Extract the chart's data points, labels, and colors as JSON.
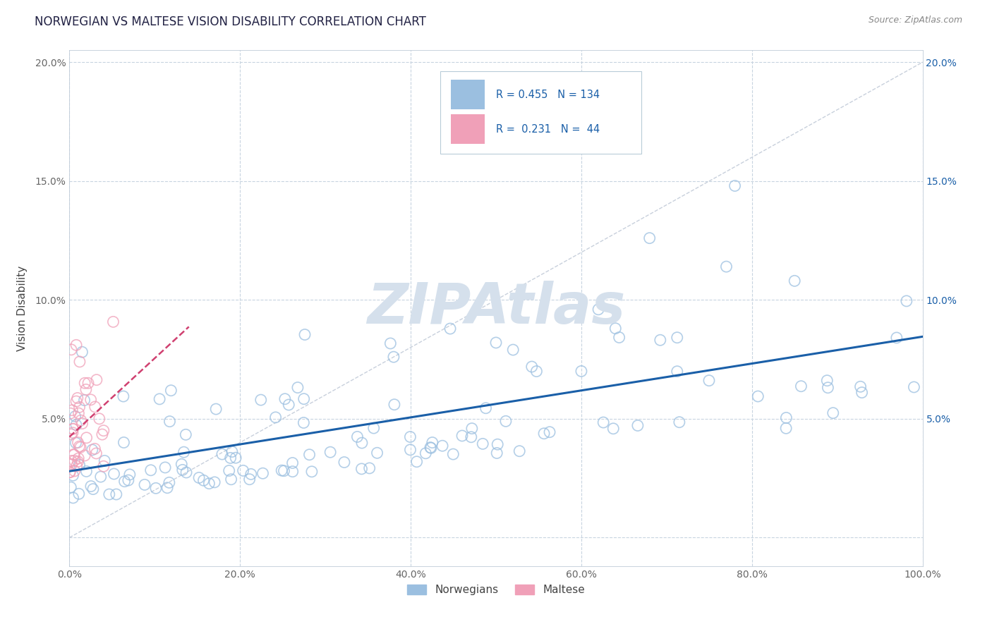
{
  "title": "NORWEGIAN VS MALTESE VISION DISABILITY CORRELATION CHART",
  "source": "Source: ZipAtlas.com",
  "ylabel": "Vision Disability",
  "xlim": [
    0,
    1
  ],
  "ylim": [
    -0.012,
    0.205
  ],
  "xticks": [
    0.0,
    0.2,
    0.4,
    0.6,
    0.8,
    1.0
  ],
  "xticklabels": [
    "0.0%",
    "20.0%",
    "40.0%",
    "60.0%",
    "80.0%",
    "100.0%"
  ],
  "yticks": [
    0.0,
    0.05,
    0.1,
    0.15,
    0.2
  ],
  "yticklabels_left": [
    "",
    "5.0%",
    "10.0%",
    "15.0%",
    "20.0%"
  ],
  "yticklabels_right": [
    "",
    "5.0%",
    "10.0%",
    "15.0%",
    "20.0%"
  ],
  "norwegian_R": 0.455,
  "norwegian_N": 134,
  "maltese_R": 0.231,
  "maltese_N": 44,
  "norwegian_color": "#9bbfe0",
  "maltese_color": "#f0a0b8",
  "trend_norwegian_color": "#1a5fa8",
  "trend_maltese_color": "#d04070",
  "diag_color": "#c8d0dc",
  "grid_color": "#c8d4e0",
  "background_color": "#ffffff",
  "watermark": "ZIPAtlas",
  "watermark_color": "#d5e0ec",
  "legend_box_color": "#e8eef5",
  "legend_border_color": "#b8ccd8"
}
